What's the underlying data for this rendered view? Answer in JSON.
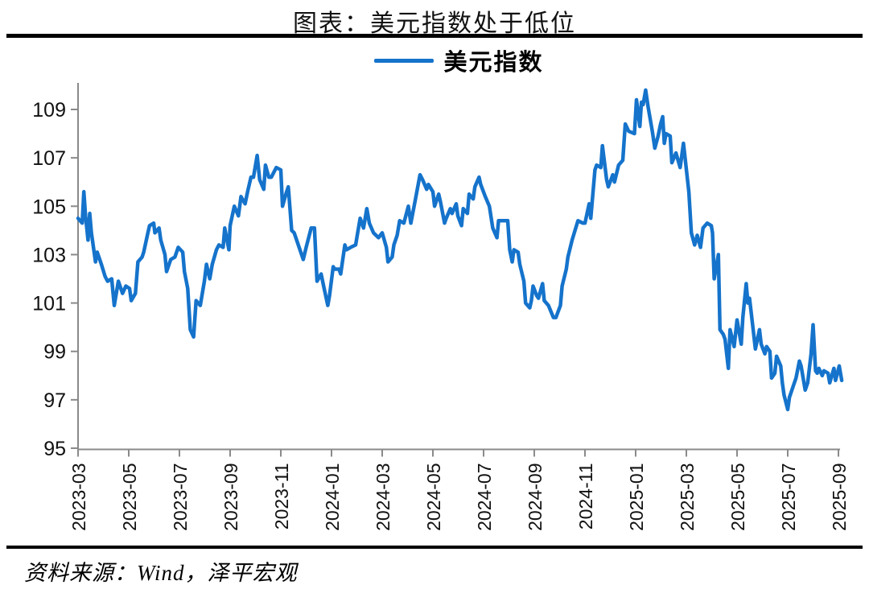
{
  "title": "图表：美元指数处于低位",
  "legend": {
    "label": "美元指数"
  },
  "source_note": "资料来源：Wind，泽平宏观",
  "chart_data": {
    "type": "line",
    "title": "图表：美元指数处于低位",
    "xlabel": "",
    "ylabel": "",
    "grid": false,
    "legend_position": "top-center",
    "axis_color": "#8a8a8a",
    "text_color": "#111111",
    "ylim": [
      95,
      110
    ],
    "y_ticks": [
      95,
      97,
      99,
      101,
      103,
      105,
      107,
      109
    ],
    "x_domain": [
      "2023-03-01",
      "2025-09-10"
    ],
    "x_ticks": [
      "2023-03",
      "2023-05",
      "2023-07",
      "2023-09",
      "2023-11",
      "2024-01",
      "2024-03",
      "2024-05",
      "2024-07",
      "2024-09",
      "2024-11",
      "2025-01",
      "2025-03",
      "2025-05",
      "2025-07",
      "2025-09"
    ],
    "series": [
      {
        "name": "美元指数",
        "color": "#1573CB",
        "points": [
          [
            "2023-03-01",
            104.5
          ],
          [
            "2023-03-06",
            104.3
          ],
          [
            "2023-03-08",
            105.6
          ],
          [
            "2023-03-10",
            104.6
          ],
          [
            "2023-03-13",
            103.6
          ],
          [
            "2023-03-15",
            104.7
          ],
          [
            "2023-03-17",
            103.9
          ],
          [
            "2023-03-22",
            102.7
          ],
          [
            "2023-03-24",
            103.1
          ],
          [
            "2023-03-29",
            102.6
          ],
          [
            "2023-04-03",
            102.1
          ],
          [
            "2023-04-06",
            101.9
          ],
          [
            "2023-04-11",
            102.0
          ],
          [
            "2023-04-14",
            100.9
          ],
          [
            "2023-04-19",
            101.9
          ],
          [
            "2023-04-24",
            101.4
          ],
          [
            "2023-04-28",
            101.7
          ],
          [
            "2023-05-02",
            101.6
          ],
          [
            "2023-05-04",
            101.1
          ],
          [
            "2023-05-09",
            101.4
          ],
          [
            "2023-05-12",
            102.7
          ],
          [
            "2023-05-17",
            102.9
          ],
          [
            "2023-05-19",
            103.1
          ],
          [
            "2023-05-24",
            103.9
          ],
          [
            "2023-05-26",
            104.2
          ],
          [
            "2023-05-31",
            104.3
          ],
          [
            "2023-06-02",
            103.9
          ],
          [
            "2023-06-07",
            104.1
          ],
          [
            "2023-06-09",
            103.6
          ],
          [
            "2023-06-14",
            103.0
          ],
          [
            "2023-06-16",
            102.3
          ],
          [
            "2023-06-21",
            102.8
          ],
          [
            "2023-06-26",
            102.9
          ],
          [
            "2023-06-30",
            103.3
          ],
          [
            "2023-07-05",
            103.1
          ],
          [
            "2023-07-07",
            102.3
          ],
          [
            "2023-07-11",
            101.6
          ],
          [
            "2023-07-14",
            99.9
          ],
          [
            "2023-07-18",
            99.6
          ],
          [
            "2023-07-21",
            101.1
          ],
          [
            "2023-07-26",
            100.9
          ],
          [
            "2023-07-31",
            101.9
          ],
          [
            "2023-08-03",
            102.6
          ],
          [
            "2023-08-07",
            102.0
          ],
          [
            "2023-08-10",
            102.6
          ],
          [
            "2023-08-15",
            103.2
          ],
          [
            "2023-08-18",
            103.4
          ],
          [
            "2023-08-23",
            103.3
          ],
          [
            "2023-08-25",
            104.1
          ],
          [
            "2023-08-30",
            103.2
          ],
          [
            "2023-09-01",
            104.2
          ],
          [
            "2023-09-06",
            105.0
          ],
          [
            "2023-09-11",
            104.6
          ],
          [
            "2023-09-14",
            105.4
          ],
          [
            "2023-09-19",
            105.1
          ],
          [
            "2023-09-22",
            105.6
          ],
          [
            "2023-09-26",
            106.2
          ],
          [
            "2023-09-29",
            106.2
          ],
          [
            "2023-10-03",
            107.1
          ],
          [
            "2023-10-06",
            106.1
          ],
          [
            "2023-10-11",
            105.7
          ],
          [
            "2023-10-13",
            106.7
          ],
          [
            "2023-10-17",
            106.2
          ],
          [
            "2023-10-20",
            106.2
          ],
          [
            "2023-10-26",
            106.6
          ],
          [
            "2023-11-01",
            106.5
          ],
          [
            "2023-11-03",
            105.0
          ],
          [
            "2023-11-08",
            105.6
          ],
          [
            "2023-11-10",
            105.8
          ],
          [
            "2023-11-14",
            104.0
          ],
          [
            "2023-11-17",
            103.9
          ],
          [
            "2023-11-21",
            103.5
          ],
          [
            "2023-11-28",
            102.8
          ],
          [
            "2023-12-01",
            103.3
          ],
          [
            "2023-12-07",
            104.1
          ],
          [
            "2023-12-11",
            104.1
          ],
          [
            "2023-12-14",
            101.9
          ],
          [
            "2023-12-19",
            102.2
          ],
          [
            "2023-12-22",
            101.7
          ],
          [
            "2023-12-27",
            100.9
          ],
          [
            "2023-12-29",
            101.3
          ],
          [
            "2024-01-03",
            102.5
          ],
          [
            "2024-01-05",
            102.4
          ],
          [
            "2024-01-10",
            102.4
          ],
          [
            "2024-01-12",
            102.2
          ],
          [
            "2024-01-17",
            103.4
          ],
          [
            "2024-01-19",
            103.2
          ],
          [
            "2024-01-24",
            103.3
          ],
          [
            "2024-01-30",
            103.4
          ],
          [
            "2024-02-02",
            103.9
          ],
          [
            "2024-02-05",
            104.5
          ],
          [
            "2024-02-09",
            104.1
          ],
          [
            "2024-02-13",
            104.9
          ],
          [
            "2024-02-16",
            104.3
          ],
          [
            "2024-02-21",
            103.9
          ],
          [
            "2024-02-27",
            103.7
          ],
          [
            "2024-03-01",
            103.9
          ],
          [
            "2024-03-06",
            103.3
          ],
          [
            "2024-03-08",
            102.7
          ],
          [
            "2024-03-13",
            102.9
          ],
          [
            "2024-03-15",
            103.4
          ],
          [
            "2024-03-19",
            103.8
          ],
          [
            "2024-03-22",
            104.4
          ],
          [
            "2024-03-27",
            104.3
          ],
          [
            "2024-04-02",
            105.0
          ],
          [
            "2024-04-05",
            104.3
          ],
          [
            "2024-04-10",
            105.2
          ],
          [
            "2024-04-16",
            106.3
          ],
          [
            "2024-04-19",
            106.1
          ],
          [
            "2024-04-24",
            105.7
          ],
          [
            "2024-04-26",
            105.9
          ],
          [
            "2024-05-01",
            105.6
          ],
          [
            "2024-05-03",
            105.0
          ],
          [
            "2024-05-08",
            105.5
          ],
          [
            "2024-05-10",
            105.2
          ],
          [
            "2024-05-15",
            104.3
          ],
          [
            "2024-05-17",
            104.5
          ],
          [
            "2024-05-22",
            104.9
          ],
          [
            "2024-05-24",
            104.7
          ],
          [
            "2024-05-29",
            105.1
          ],
          [
            "2024-05-31",
            104.6
          ],
          [
            "2024-06-05",
            104.2
          ],
          [
            "2024-06-07",
            104.9
          ],
          [
            "2024-06-12",
            104.7
          ],
          [
            "2024-06-14",
            105.5
          ],
          [
            "2024-06-19",
            105.3
          ],
          [
            "2024-06-21",
            105.8
          ],
          [
            "2024-06-26",
            106.2
          ],
          [
            "2024-06-28",
            105.9
          ],
          [
            "2024-07-03",
            105.4
          ],
          [
            "2024-07-08",
            105.0
          ],
          [
            "2024-07-12",
            104.1
          ],
          [
            "2024-07-17",
            103.7
          ],
          [
            "2024-07-19",
            104.4
          ],
          [
            "2024-07-24",
            104.4
          ],
          [
            "2024-07-30",
            104.4
          ],
          [
            "2024-08-02",
            103.2
          ],
          [
            "2024-08-05",
            102.7
          ],
          [
            "2024-08-07",
            103.2
          ],
          [
            "2024-08-12",
            103.1
          ],
          [
            "2024-08-14",
            102.6
          ],
          [
            "2024-08-19",
            101.9
          ],
          [
            "2024-08-21",
            101.0
          ],
          [
            "2024-08-26",
            100.8
          ],
          [
            "2024-08-28",
            101.1
          ],
          [
            "2024-08-30",
            101.7
          ],
          [
            "2024-09-04",
            101.3
          ],
          [
            "2024-09-06",
            101.2
          ],
          [
            "2024-09-11",
            101.8
          ],
          [
            "2024-09-13",
            101.1
          ],
          [
            "2024-09-18",
            100.9
          ],
          [
            "2024-09-24",
            100.4
          ],
          [
            "2024-09-27",
            100.4
          ],
          [
            "2024-10-02",
            100.9
          ],
          [
            "2024-10-04",
            101.7
          ],
          [
            "2024-10-09",
            102.4
          ],
          [
            "2024-10-11",
            102.9
          ],
          [
            "2024-10-16",
            103.6
          ],
          [
            "2024-10-23",
            104.4
          ],
          [
            "2024-10-29",
            104.3
          ],
          [
            "2024-11-01",
            104.3
          ],
          [
            "2024-11-06",
            105.1
          ],
          [
            "2024-11-08",
            104.5
          ],
          [
            "2024-11-13",
            106.5
          ],
          [
            "2024-11-15",
            106.7
          ],
          [
            "2024-11-20",
            106.6
          ],
          [
            "2024-11-22",
            107.5
          ],
          [
            "2024-11-27",
            106.1
          ],
          [
            "2024-11-29",
            105.8
          ],
          [
            "2024-12-04",
            106.3
          ],
          [
            "2024-12-06",
            106.0
          ],
          [
            "2024-12-11",
            106.7
          ],
          [
            "2024-12-16",
            106.9
          ],
          [
            "2024-12-19",
            108.4
          ],
          [
            "2024-12-23",
            108.1
          ],
          [
            "2024-12-30",
            108.0
          ],
          [
            "2025-01-02",
            109.4
          ],
          [
            "2025-01-06",
            108.3
          ],
          [
            "2025-01-08",
            109.3
          ],
          [
            "2025-01-10",
            109.2
          ],
          [
            "2025-01-13",
            109.8
          ],
          [
            "2025-01-16",
            109.1
          ],
          [
            "2025-01-21",
            108.1
          ],
          [
            "2025-01-24",
            107.4
          ],
          [
            "2025-01-28",
            107.9
          ],
          [
            "2025-01-31",
            108.4
          ],
          [
            "2025-02-03",
            108.7
          ],
          [
            "2025-02-05",
            107.6
          ],
          [
            "2025-02-07",
            108.0
          ],
          [
            "2025-02-12",
            107.9
          ],
          [
            "2025-02-14",
            106.8
          ],
          [
            "2025-02-19",
            107.2
          ],
          [
            "2025-02-24",
            106.6
          ],
          [
            "2025-02-28",
            107.6
          ],
          [
            "2025-03-04",
            105.6
          ],
          [
            "2025-03-07",
            103.9
          ],
          [
            "2025-03-11",
            103.4
          ],
          [
            "2025-03-14",
            103.8
          ],
          [
            "2025-03-18",
            103.3
          ],
          [
            "2025-03-21",
            104.1
          ],
          [
            "2025-03-26",
            104.3
          ],
          [
            "2025-03-31",
            104.2
          ],
          [
            "2025-04-02",
            103.9
          ],
          [
            "2025-04-04",
            102.0
          ],
          [
            "2025-04-09",
            103.0
          ],
          [
            "2025-04-11",
            99.9
          ],
          [
            "2025-04-15",
            99.7
          ],
          [
            "2025-04-17",
            99.5
          ],
          [
            "2025-04-21",
            98.3
          ],
          [
            "2025-04-23",
            99.9
          ],
          [
            "2025-04-28",
            99.2
          ],
          [
            "2025-05-01",
            100.3
          ],
          [
            "2025-05-06",
            99.3
          ],
          [
            "2025-05-08",
            100.4
          ],
          [
            "2025-05-12",
            101.8
          ],
          [
            "2025-05-14",
            101.0
          ],
          [
            "2025-05-16",
            101.2
          ],
          [
            "2025-05-20",
            100.0
          ],
          [
            "2025-05-23",
            99.1
          ],
          [
            "2025-05-28",
            99.9
          ],
          [
            "2025-05-30",
            99.3
          ],
          [
            "2025-06-04",
            98.9
          ],
          [
            "2025-06-06",
            99.2
          ],
          [
            "2025-06-10",
            99.0
          ],
          [
            "2025-06-12",
            97.9
          ],
          [
            "2025-06-16",
            98.1
          ],
          [
            "2025-06-18",
            98.8
          ],
          [
            "2025-06-23",
            98.4
          ],
          [
            "2025-06-25",
            97.7
          ],
          [
            "2025-06-27",
            97.2
          ],
          [
            "2025-07-01",
            96.6
          ],
          [
            "2025-07-03",
            97.1
          ],
          [
            "2025-07-08",
            97.6
          ],
          [
            "2025-07-11",
            97.9
          ],
          [
            "2025-07-15",
            98.6
          ],
          [
            "2025-07-17",
            98.4
          ],
          [
            "2025-07-22",
            97.4
          ],
          [
            "2025-07-25",
            97.7
          ],
          [
            "2025-07-29",
            98.9
          ],
          [
            "2025-08-01",
            100.1
          ],
          [
            "2025-08-04",
            98.2
          ],
          [
            "2025-08-06",
            98.1
          ],
          [
            "2025-08-08",
            98.3
          ],
          [
            "2025-08-12",
            98.0
          ],
          [
            "2025-08-14",
            98.2
          ],
          [
            "2025-08-19",
            98.1
          ],
          [
            "2025-08-21",
            97.7
          ],
          [
            "2025-08-26",
            98.3
          ],
          [
            "2025-08-28",
            97.8
          ],
          [
            "2025-09-02",
            98.4
          ],
          [
            "2025-09-05",
            97.8
          ]
        ]
      }
    ]
  }
}
